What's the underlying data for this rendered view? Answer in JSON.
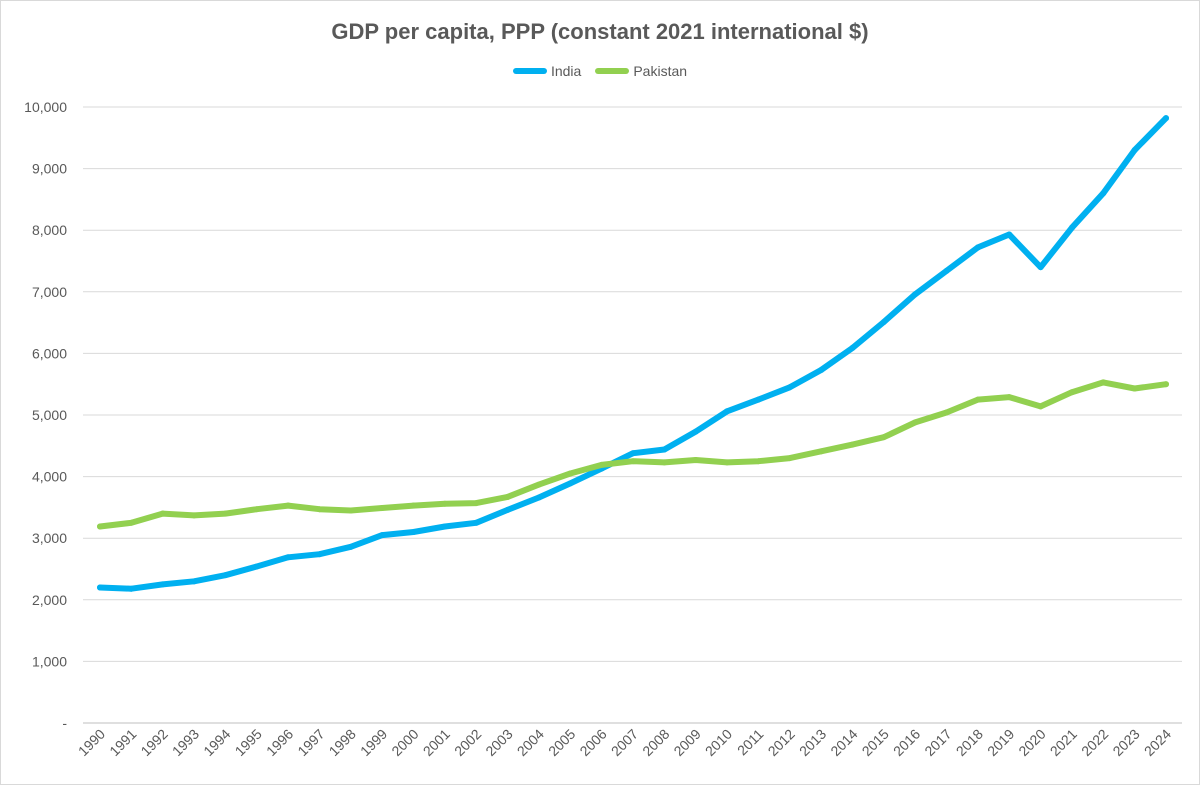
{
  "chart_data": {
    "type": "line",
    "title": "GDP per capita, PPP (constant 2021 international $)",
    "xlabel": "",
    "ylabel": "",
    "x": [
      "1990",
      "1991",
      "1992",
      "1993",
      "1994",
      "1995",
      "1996",
      "1997",
      "1998",
      "1999",
      "2000",
      "2001",
      "2002",
      "2003",
      "2004",
      "2005",
      "2006",
      "2007",
      "2008",
      "2009",
      "2010",
      "2011",
      "2012",
      "2013",
      "2014",
      "2015",
      "2016",
      "2017",
      "2018",
      "2019",
      "2020",
      "2021",
      "2022",
      "2023",
      "2024"
    ],
    "ylim": [
      0,
      10000
    ],
    "yticks": [
      0,
      1000,
      2000,
      3000,
      4000,
      5000,
      6000,
      7000,
      8000,
      9000,
      10000
    ],
    "ytick_labels": [
      "-",
      "1,000",
      "2,000",
      "3,000",
      "4,000",
      "5,000",
      "6,000",
      "7,000",
      "8,000",
      "9,000",
      "10,000"
    ],
    "grid": true,
    "legend_position": "top-center",
    "series": [
      {
        "name": "India",
        "color": "#00b0f0",
        "values": [
          2200,
          2180,
          2250,
          2300,
          2400,
          2540,
          2690,
          2740,
          2860,
          3050,
          3100,
          3190,
          3250,
          3460,
          3660,
          3890,
          4130,
          4380,
          4440,
          4730,
          5060,
          5250,
          5450,
          5730,
          6090,
          6510,
          6960,
          7340,
          7720,
          7930,
          7400,
          8040,
          8600,
          9300,
          9820
        ]
      },
      {
        "name": "Pakistan",
        "color": "#92d050",
        "values": [
          3190,
          3250,
          3400,
          3370,
          3400,
          3470,
          3530,
          3470,
          3450,
          3490,
          3530,
          3560,
          3570,
          3670,
          3870,
          4050,
          4190,
          4250,
          4230,
          4270,
          4230,
          4250,
          4300,
          4410,
          4520,
          4640,
          4880,
          5040,
          5250,
          5290,
          5140,
          5370,
          5530,
          5430,
          5500
        ]
      }
    ]
  }
}
